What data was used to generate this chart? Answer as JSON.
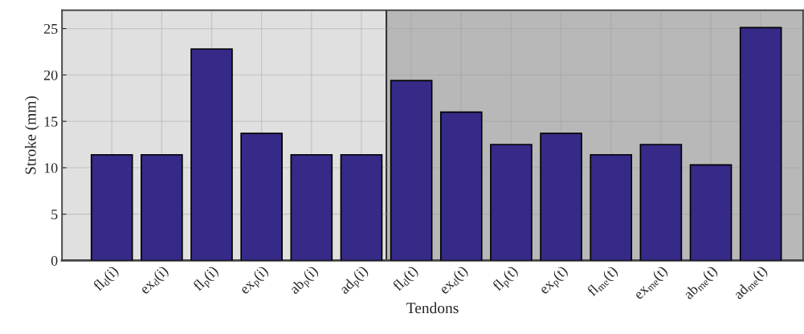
{
  "chart_data": {
    "type": "bar",
    "xlabel": "Tendons",
    "ylabel": "Stroke (mm)",
    "categories": [
      "fl$_{d}$(i)",
      "ex$_{d}$(i)",
      "fl$_{p}$(i)",
      "ex$_{p}$(i)",
      "ab$_{p}$(i)",
      "ad$_{p}$(i)",
      "fl$_{d}$(t)",
      "ex$_{d}$(t)",
      "fl$_{p}$(t)",
      "ex$_{p}$(t)",
      "fl$_{me}$(t)",
      "ex$_{me}$(t)",
      "ab$_{me}$(t)",
      "ad$_{me}$(t)"
    ],
    "values": [
      11.4,
      11.4,
      22.8,
      13.7,
      11.4,
      11.4,
      19.4,
      16.0,
      12.5,
      13.7,
      11.4,
      12.5,
      10.3,
      25.1
    ],
    "color": "#352a87",
    "ylim": [
      0,
      27
    ],
    "yticks": [
      0,
      5,
      10,
      15,
      20,
      25
    ],
    "grid": true
  }
}
